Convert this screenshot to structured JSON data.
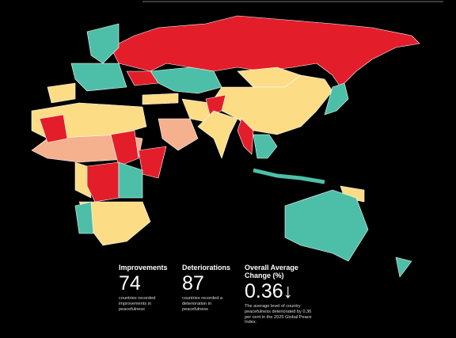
{
  "stats": [
    {
      "heading": "Improvements",
      "value": "74",
      "description": "countries recorded improvements in peacefulness"
    },
    {
      "heading": "Deteriorations",
      "value": "87",
      "description": "countries recorded a deterioration in peacefulness"
    },
    {
      "heading": "Overall Average Change (%)",
      "value": "0.36↓",
      "description": "The average level of country peacefulness deteriorated by 0.36 per cent in the 2025 Global Peace Index."
    }
  ]
}
